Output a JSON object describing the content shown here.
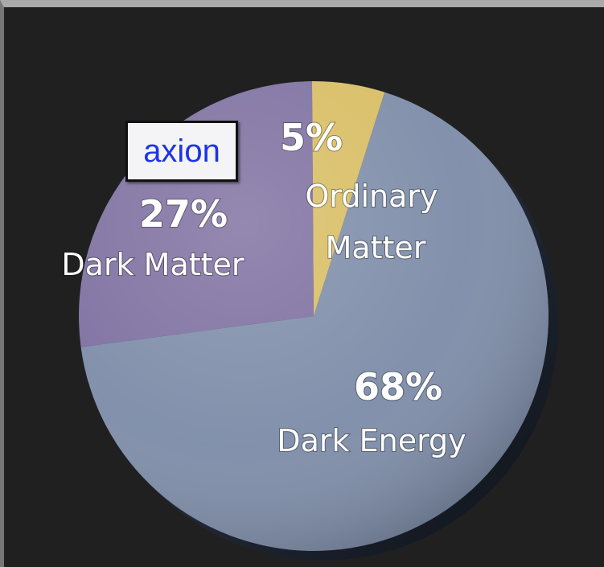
{
  "chart_data": {
    "type": "pie",
    "title": "",
    "slices": [
      {
        "label": "Dark Energy",
        "percent_label": "68%",
        "value": 68,
        "color": "#7d8ca8"
      },
      {
        "label": "Dark Matter",
        "percent_label": "27%",
        "value": 27,
        "color": "#7d6fa0"
      },
      {
        "label": "Ordinary Matter",
        "label_lines": [
          "Ordinary",
          "Matter"
        ],
        "percent_label": "5%",
        "value": 5,
        "color": "#d8bd63"
      }
    ],
    "annotation": {
      "text": "axion",
      "text_color": "#1d34e6"
    },
    "background_color": "#202020"
  }
}
